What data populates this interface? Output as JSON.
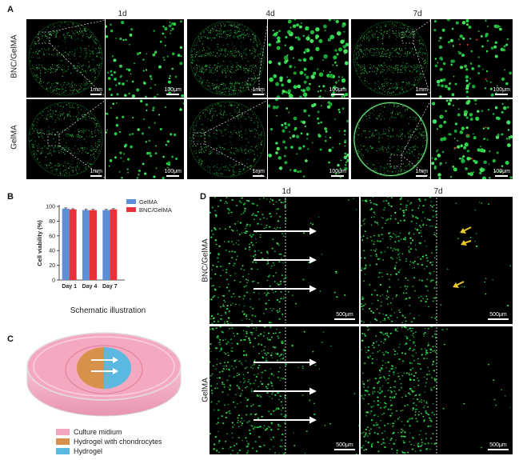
{
  "panels": {
    "a": {
      "letter": "A",
      "columns": [
        "1d",
        "4d",
        "7d"
      ],
      "rows": [
        "BNC/GelMA",
        "GelMA"
      ],
      "scale_whole": "1mm",
      "scale_zoom": "100μm"
    },
    "b": {
      "letter": "B",
      "caption": "Schematic illustration"
    },
    "c": {
      "letter": "C",
      "legend": [
        {
          "label": "Culture midium",
          "color": "#f2a6bd"
        },
        {
          "label": "Hydrogel with chondrocytes",
          "color": "#d8914a"
        },
        {
          "label": "Hydrogel",
          "color": "#5bb8e0"
        }
      ]
    },
    "d": {
      "letter": "D",
      "columns": [
        "1d",
        "7d"
      ],
      "rows": [
        "BNC/GelMA",
        "GelMA"
      ],
      "scale": "500μm"
    }
  },
  "chart_data": {
    "type": "bar",
    "categories": [
      "Day 1",
      "Day 4",
      "Day 7"
    ],
    "series": [
      {
        "name": "GelMA",
        "values": [
          97,
          95,
          95
        ],
        "errors": [
          1,
          1.5,
          1
        ],
        "color": "#5b8fd6"
      },
      {
        "name": "BNC/GelMA",
        "values": [
          96,
          95,
          96
        ],
        "errors": [
          0.8,
          1,
          1
        ],
        "color": "#e8323a"
      }
    ],
    "ylabel": "Cell viability (%)",
    "yticks": [
      0,
      20,
      40,
      60,
      80,
      100
    ],
    "ylim": [
      0,
      100
    ],
    "legend_position": "top-right"
  }
}
